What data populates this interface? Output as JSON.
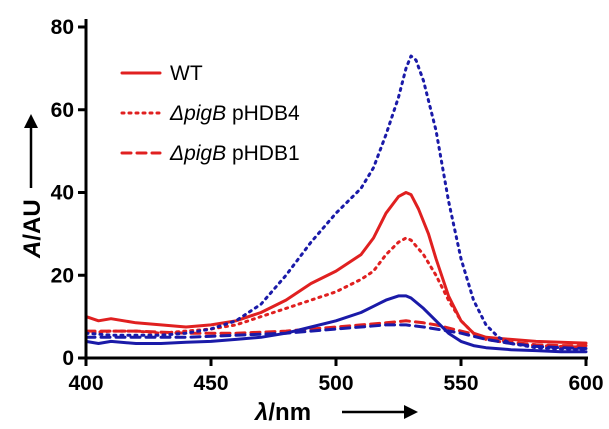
{
  "chart_data": {
    "type": "line",
    "xlabel": "λ/nm",
    "ylabel": "A/AU",
    "xlim": [
      400,
      600
    ],
    "ylim": [
      0,
      80
    ],
    "x_ticks": [
      "400",
      "450",
      "500",
      "550",
      "600"
    ],
    "y_ticks": [
      "0",
      "20",
      "40",
      "60",
      "80"
    ],
    "grid": false,
    "legend_position": "top-left",
    "colors": {
      "red": "#e02020",
      "blue": "#1a1aa8"
    },
    "legend": [
      {
        "name": "WT",
        "style": "solid",
        "italic_part": "",
        "plain_part": "WT"
      },
      {
        "name": "ΔpigB pHDB4",
        "style": "dotted",
        "italic_part": "ΔpigB",
        "plain_part": " pHDB4"
      },
      {
        "name": "ΔpigB pHDB1",
        "style": "dashed",
        "italic_part": "ΔpigB",
        "plain_part": " pHDB1"
      }
    ],
    "series": [
      {
        "color": "red",
        "style": "solid",
        "x": [
          400,
          405,
          410,
          420,
          430,
          440,
          450,
          460,
          470,
          480,
          490,
          500,
          510,
          515,
          520,
          525,
          528,
          530,
          533,
          537,
          540,
          545,
          550,
          555,
          560,
          570,
          580,
          590,
          600
        ],
        "y": [
          10,
          9,
          9.5,
          8.5,
          8,
          7.5,
          8,
          9,
          11,
          14,
          18,
          21,
          25,
          29,
          35,
          39,
          40,
          39.5,
          36,
          30,
          24,
          15,
          9,
          6,
          5,
          4.5,
          4,
          3.8,
          3.6
        ]
      },
      {
        "color": "red",
        "style": "dotted",
        "x": [
          400,
          410,
          420,
          430,
          440,
          450,
          460,
          470,
          480,
          490,
          500,
          510,
          515,
          520,
          525,
          528,
          530,
          535,
          540,
          545,
          550,
          555,
          560,
          570,
          580,
          590,
          600
        ],
        "y": [
          6,
          6.5,
          6.5,
          6,
          6.5,
          7,
          8,
          10,
          12,
          14,
          16,
          19,
          21,
          25,
          28,
          29,
          28.5,
          25,
          20,
          14,
          9,
          6,
          4.5,
          3.5,
          3,
          2.8,
          2.6
        ]
      },
      {
        "color": "red",
        "style": "dashed",
        "x": [
          400,
          420,
          440,
          460,
          480,
          500,
          510,
          520,
          528,
          535,
          540,
          550,
          560,
          570,
          580,
          590,
          600
        ],
        "y": [
          6.5,
          6.5,
          6,
          6,
          6.5,
          7.5,
          8,
          8.5,
          9,
          8.5,
          8,
          6.5,
          5,
          3.8,
          3.2,
          3,
          3
        ]
      },
      {
        "color": "blue",
        "style": "dotted",
        "x": [
          400,
          410,
          420,
          430,
          440,
          450,
          460,
          470,
          480,
          490,
          500,
          505,
          510,
          515,
          520,
          525,
          528,
          530,
          532,
          535,
          540,
          545,
          550,
          555,
          560,
          565,
          570,
          580,
          590,
          600
        ],
        "y": [
          6,
          5.5,
          5.5,
          5.5,
          6,
          7,
          9,
          13,
          20,
          28,
          35,
          38,
          41,
          46,
          54,
          63,
          70,
          73,
          72,
          67,
          55,
          38,
          24,
          14,
          8,
          5,
          3.5,
          2.5,
          2.2,
          2
        ]
      },
      {
        "color": "blue",
        "style": "solid",
        "x": [
          400,
          405,
          410,
          420,
          430,
          440,
          450,
          460,
          470,
          480,
          490,
          500,
          510,
          515,
          520,
          525,
          528,
          530,
          535,
          540,
          545,
          550,
          555,
          560,
          570,
          580,
          590,
          600
        ],
        "y": [
          4,
          3.5,
          4,
          3.5,
          3.5,
          3.8,
          4,
          4.5,
          5,
          6,
          7.5,
          9,
          11,
          12.5,
          14,
          15,
          15,
          14.5,
          12,
          9,
          6,
          4,
          3,
          2.5,
          2,
          1.8,
          1.5,
          1.5
        ]
      },
      {
        "color": "blue",
        "style": "dashed",
        "x": [
          400,
          420,
          440,
          460,
          480,
          500,
          510,
          520,
          528,
          535,
          540,
          550,
          560,
          570,
          580,
          590,
          600
        ],
        "y": [
          5,
          5,
          5,
          5.5,
          6,
          7,
          7.5,
          8,
          8,
          7.5,
          7,
          6,
          4.5,
          3.5,
          2.8,
          2.5,
          2.3
        ]
      }
    ]
  }
}
